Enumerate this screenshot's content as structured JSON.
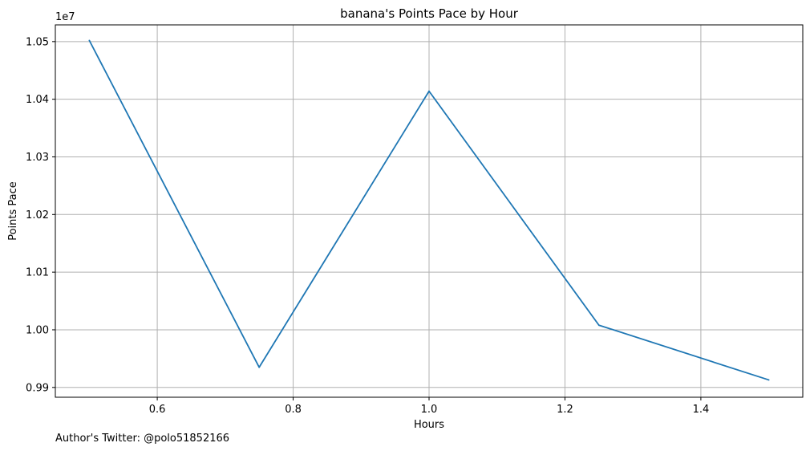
{
  "chart_data": {
    "type": "line",
    "title": "banana's Points Pace by Hour",
    "xlabel": "Hours",
    "ylabel": "Points Pace",
    "y_offset_label": "1e7",
    "grid": true,
    "x_ticks": [
      "0.6",
      "0.8",
      "1.0",
      "1.2",
      "1.4"
    ],
    "x_tick_values": [
      0.6,
      0.8,
      1.0,
      1.2,
      1.4
    ],
    "y_ticks": [
      "0.99",
      "1.00",
      "1.01",
      "1.02",
      "1.03",
      "1.04",
      "1.05"
    ],
    "y_tick_values": [
      0.99,
      1.0,
      1.01,
      1.02,
      1.03,
      1.04,
      1.05
    ],
    "xlim": [
      0.45,
      1.55
    ],
    "ylim": [
      0.9883,
      1.0529
    ],
    "series": [
      {
        "color": "#1f77b4",
        "x": [
          0.5,
          0.75,
          1.0,
          1.25,
          1.5
        ],
        "y": [
          1.0502,
          0.9935,
          1.0414,
          1.0008,
          0.9913
        ]
      }
    ]
  },
  "footer": {
    "author_text": "Author's Twitter: @polo51852166"
  }
}
